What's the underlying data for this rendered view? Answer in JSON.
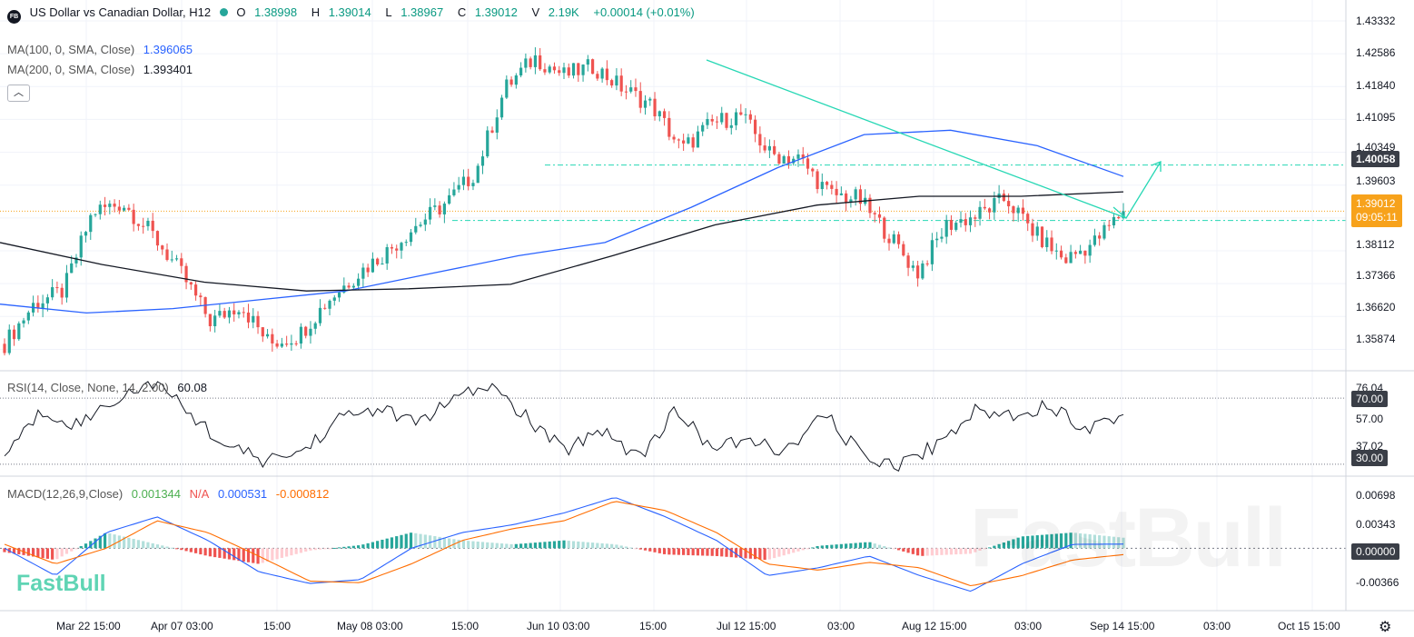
{
  "header": {
    "symbol_badge": "FB",
    "title": "US Dollar vs Canadian Dollar, H12",
    "open_label": "O",
    "open": "1.38998",
    "high_label": "H",
    "high": "1.39014",
    "low_label": "L",
    "low": "1.38967",
    "close_label": "C",
    "close": "1.39012",
    "volume_label": "V",
    "volume": "2.19K",
    "change": "+0.00014 (+0.01%)"
  },
  "indicators": {
    "ma100_label": "MA(100, 0, SMA, Close)",
    "ma100_value": "1.396065",
    "ma200_label": "MA(200, 0, SMA, Close)",
    "ma200_value": "1.393401",
    "rsi_label": "RSI(14, Close, None, 14, 2.00)",
    "rsi_value": "60.08",
    "macd_label": "MACD(12,26,9,Close)",
    "macd_hist": "0.001344",
    "macd_na": "N/A",
    "macd_line": "0.000531",
    "macd_signal": "-0.000812"
  },
  "price_axis": [
    "1.43332",
    "1.42586",
    "1.41840",
    "1.41095",
    "1.40349",
    "1.39603",
    "1.38112",
    "1.37366",
    "1.36620",
    "1.35874"
  ],
  "price_tags": {
    "level": "1.40058",
    "last": "1.39012",
    "countdown": "09:05:11"
  },
  "rsi_axis": {
    "top": "76.04",
    "mid": "57.00",
    "bottom": "37.02",
    "upper_band": "70.00",
    "lower_band": "30.00"
  },
  "macd_axis": [
    "0.00698",
    "0.00343",
    "0.00000",
    "-0.00366"
  ],
  "time_axis": [
    "Mar 22 15:00",
    "Apr 07 03:00",
    "15:00",
    "May 08 03:00",
    "15:00",
    "Jun 10 03:00",
    "15:00",
    "Jul 12 15:00",
    "03:00",
    "Aug 12 15:00",
    "03:00",
    "Sep 14 15:00",
    "03:00",
    "Oct 15 15:00"
  ],
  "watermark": "FastBull",
  "logo": "FastBull",
  "colors": {
    "up": "#26a69a",
    "down": "#ef5350",
    "ma100": "#2962ff",
    "ma200": "#131722",
    "trend": "#26d7b4",
    "rsi": "#131722",
    "macd": "#2962ff",
    "signal": "#ff6d00",
    "last_price": "#f7a21b"
  },
  "chart_data": [
    {
      "type": "candlestick",
      "title": "US Dollar vs Canadian Dollar, H12",
      "ylim": [
        1.3545,
        1.436
      ],
      "close_path": [
        [
          "Mar 15",
          1.36
        ],
        [
          "Mar 22",
          1.369
        ],
        [
          "Mar 28",
          1.372
        ],
        [
          "Apr 03",
          1.39
        ],
        [
          "Apr 07",
          1.392
        ],
        [
          "Apr 12",
          1.385
        ],
        [
          "Apr 20",
          1.376
        ],
        [
          "Apr 26",
          1.365
        ],
        [
          "May 02",
          1.369
        ],
        [
          "May 06",
          1.36
        ],
        [
          "May 10",
          1.362
        ],
        [
          "May 18",
          1.37
        ],
        [
          "May 25",
          1.376
        ],
        [
          "Jun 02",
          1.381
        ],
        [
          "Jun 06",
          1.387
        ],
        [
          "Jun 10",
          1.392
        ],
        [
          "Jun 14",
          1.399
        ],
        [
          "Jun 18",
          1.418
        ],
        [
          "Jun 22",
          1.425
        ],
        [
          "Jun 28",
          1.421
        ],
        [
          "Jul 04",
          1.423
        ],
        [
          "Jul 08",
          1.418
        ],
        [
          "Jul 12",
          1.414
        ],
        [
          "Jul 18",
          1.404
        ],
        [
          "Jul 22",
          1.41
        ],
        [
          "Jul 28",
          1.412
        ],
        [
          "Aug 02",
          1.403
        ],
        [
          "Aug 06",
          1.402
        ],
        [
          "Aug 10",
          1.394
        ],
        [
          "Aug 14",
          1.393
        ],
        [
          "Aug 18",
          1.385
        ],
        [
          "Aug 22",
          1.376
        ],
        [
          "Aug 26",
          1.387
        ],
        [
          "Aug 30",
          1.389
        ],
        [
          "Sep 03",
          1.393
        ],
        [
          "Sep 06",
          1.385
        ],
        [
          "Sep 09",
          1.379
        ],
        [
          "Sep 12",
          1.383
        ],
        [
          "Sep 14",
          1.3901
        ]
      ],
      "ma100": [
        1.369,
        1.367,
        1.368,
        1.37,
        1.372,
        1.376,
        1.38,
        1.383,
        1.391,
        1.4,
        1.4075,
        1.4085,
        1.405,
        1.398
      ],
      "ma200": [
        1.383,
        1.378,
        1.374,
        1.372,
        1.3725,
        1.3735,
        1.38,
        1.387,
        1.3915,
        1.3935,
        1.3935,
        1.3945
      ],
      "horizontal_levels": [
        1.40058,
        1.388
      ],
      "last_price": 1.39012
    },
    {
      "type": "line",
      "series": [
        {
          "name": "RSI",
          "values": [
            36,
            62,
            54,
            70,
            80,
            60,
            40,
            32,
            38,
            58,
            64,
            55,
            68,
            78,
            58,
            38,
            52,
            34,
            62,
            40,
            44,
            38,
            60,
            35,
            30,
            42,
            62,
            60,
            66,
            52,
            60.08
          ]
        }
      ],
      "ylim": [
        25,
        80
      ],
      "bands": [
        70,
        30
      ]
    },
    {
      "type": "line",
      "series": [
        {
          "name": "MACD",
          "values": [
            0.0,
            -0.0035,
            0.002,
            0.004,
            0.001,
            -0.003,
            -0.0045,
            -0.004,
            0.0,
            0.002,
            0.003,
            0.0045,
            0.0065,
            0.004,
            0.001,
            -0.0035,
            -0.0025,
            -0.001,
            -0.0035,
            -0.0055,
            -0.002,
            0.0005,
            0.000531
          ]
        },
        {
          "name": "Signal",
          "values": [
            0.0005,
            -0.002,
            0.0,
            0.0035,
            0.002,
            -0.001,
            -0.0042,
            -0.0044,
            -0.002,
            0.001,
            0.0025,
            0.0035,
            0.006,
            0.0048,
            0.002,
            -0.002,
            -0.0028,
            -0.0018,
            -0.0025,
            -0.0048,
            -0.0035,
            -0.0015,
            -0.000812
          ]
        }
      ],
      "ylim": [
        -0.0075,
        0.0085
      ]
    }
  ]
}
